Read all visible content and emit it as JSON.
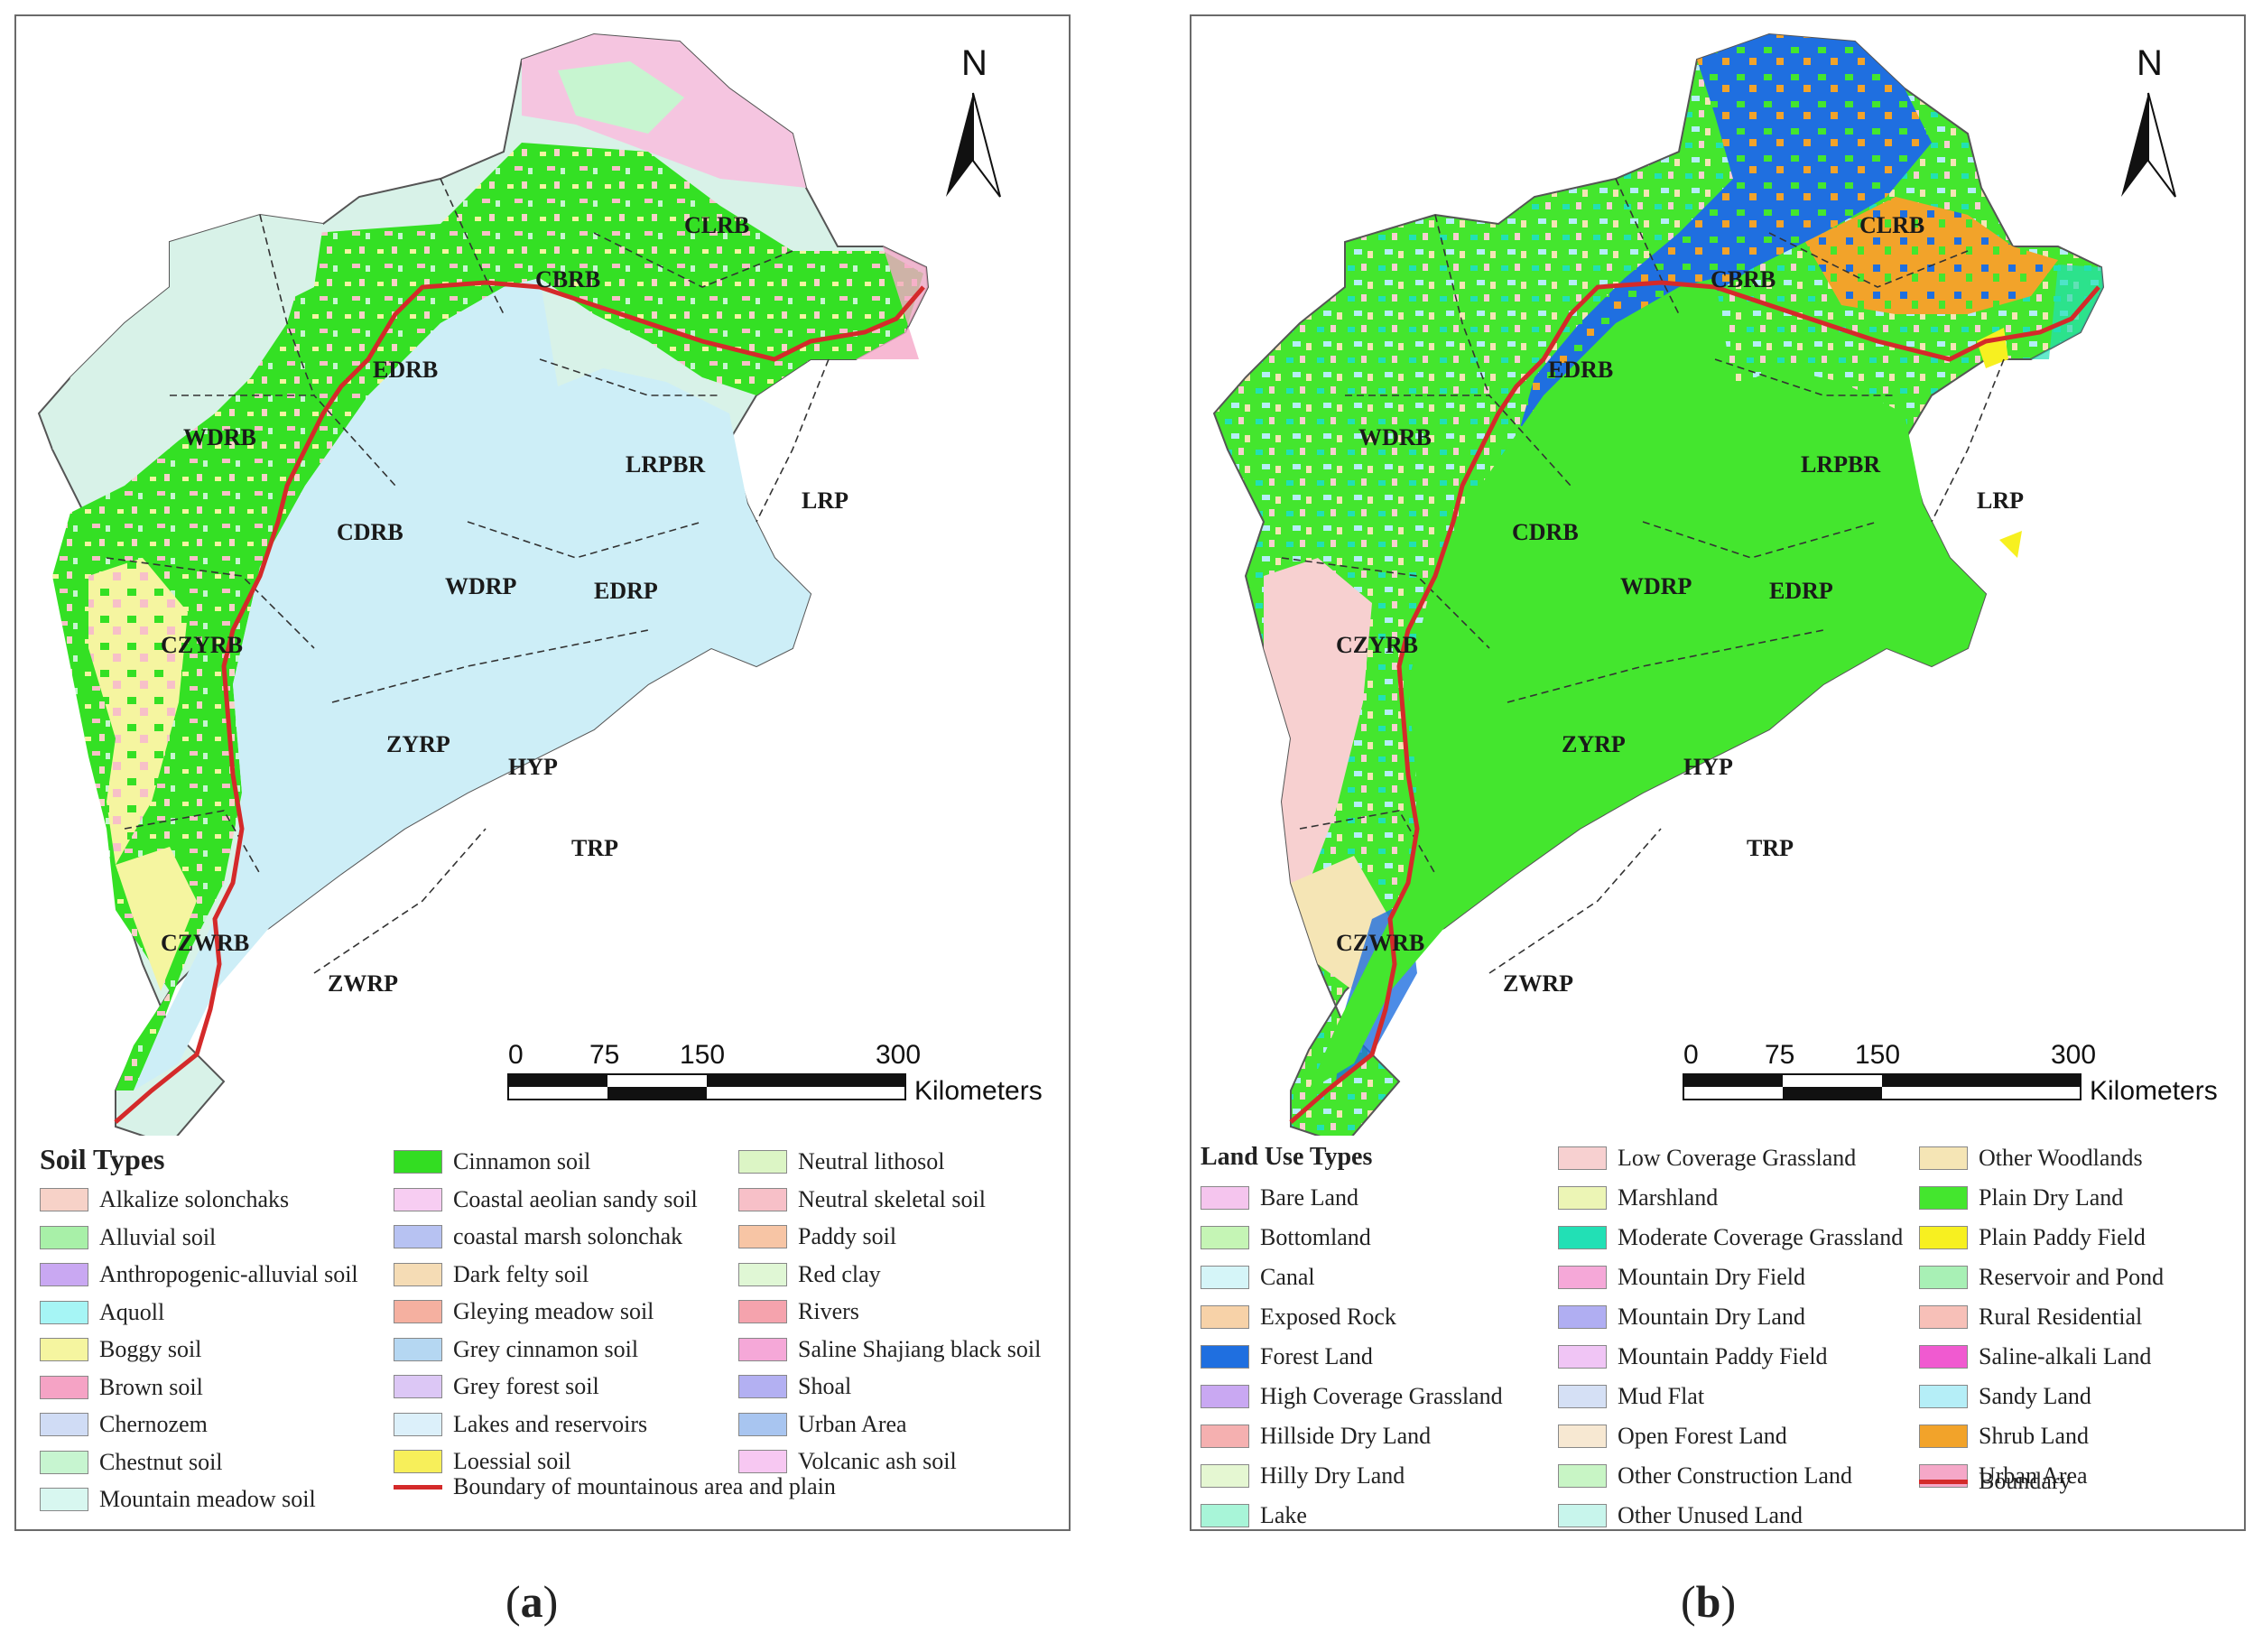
{
  "colors": {
    "boundary": "#d42a2a",
    "mountain_green": "#34e024",
    "plain_cyan": "#cdeef7",
    "plain_green": "#44e62e",
    "forest_blue": "#1f6fe0",
    "shrub_orange": "#f2a32a"
  },
  "panel_a": {
    "caption_letter": "a",
    "north": "N",
    "scale": {
      "ticks": [
        "0",
        "75",
        "150",
        "300"
      ],
      "unit": "Kilometers"
    },
    "regions": [
      "CLRB",
      "CBRB",
      "EDRB",
      "WDRB",
      "LRPBR",
      "LRP",
      "CDRB",
      "WDRP",
      "EDRP",
      "CZYRB",
      "ZYRP",
      "HYP",
      "TRP",
      "CZWRB",
      "ZWRP"
    ],
    "legend_title": "Soil Types",
    "legend_columns": [
      [
        {
          "label": "Alkalize solonchaks",
          "color": "#f7d2c8"
        },
        {
          "label": "Alluvial soil",
          "color": "#a8f0a8"
        },
        {
          "label": "Anthropogenic-alluvial soil",
          "color": "#c9a8f2"
        },
        {
          "label": "Aquoll",
          "color": "#a6f5f5"
        },
        {
          "label": "Boggy soil",
          "color": "#f5f5a0"
        },
        {
          "label": "Brown soil",
          "color": "#f5a3c5"
        },
        {
          "label": "Chernozem",
          "color": "#d0dcf5"
        },
        {
          "label": "Chestnut soil",
          "color": "#c7f5d0"
        },
        {
          "label": "Mountain meadow soil",
          "color": "#d8f7f0"
        }
      ],
      [
        {
          "label": "Cinnamon soil",
          "color": "#33dd22"
        },
        {
          "label": "Coastal aeolian sandy soil",
          "color": "#f7cdf2"
        },
        {
          "label": "coastal marsh solonchak",
          "color": "#b7c2f2"
        },
        {
          "label": "Dark felty soil",
          "color": "#f5dcb5"
        },
        {
          "label": "Gleying meadow soil",
          "color": "#f5b0a0"
        },
        {
          "label": "Grey cinnamon soil",
          "color": "#b5d7f2"
        },
        {
          "label": "Grey forest soil",
          "color": "#dcc7f5"
        },
        {
          "label": "Lakes and reservoirs",
          "color": "#dcf0fa"
        },
        {
          "label": "Loessial soil",
          "color": "#f7ef5a"
        }
      ],
      [
        {
          "label": "Neutral lithosol",
          "color": "#dcf5c5"
        },
        {
          "label": "Neutral skeletal soil",
          "color": "#f7c0c8"
        },
        {
          "label": "Paddy soil",
          "color": "#f7c5a5"
        },
        {
          "label": "Red clay",
          "color": "#e0f7d5"
        },
        {
          "label": "Rivers",
          "color": "#f5a3ad"
        },
        {
          "label": "Saline Shajiang black soil",
          "color": "#f5a8d8"
        },
        {
          "label": "Shoal",
          "color": "#b3b0f2"
        },
        {
          "label": "Urban Area",
          "color": "#a8c5f0"
        },
        {
          "label": "Volcanic ash soil",
          "color": "#f7c8f2"
        }
      ]
    ],
    "boundary_label": "Boundary of mountainous area and plain"
  },
  "panel_b": {
    "caption_letter": "b",
    "north": "N",
    "scale": {
      "ticks": [
        "0",
        "75",
        "150",
        "300"
      ],
      "unit": "Kilometers"
    },
    "regions": [
      "CLRB",
      "CBRB",
      "EDRB",
      "WDRB",
      "LRPBR",
      "LRP",
      "CDRB",
      "WDRP",
      "EDRP",
      "CZYRB",
      "ZYRP",
      "HYP",
      "TRP",
      "CZWRB",
      "ZWRP"
    ],
    "legend_title": "Land Use Types",
    "legend_columns": [
      [
        {
          "label": "Bare Land",
          "color": "#f5c5ee"
        },
        {
          "label": "Bottomland",
          "color": "#c5f5b5"
        },
        {
          "label": "Canal",
          "color": "#d5f5f8"
        },
        {
          "label": "Exposed Rock",
          "color": "#f7d2a8"
        },
        {
          "label": "Forest Land",
          "color": "#1f6fe0"
        },
        {
          "label": "High Coverage Grassland",
          "color": "#c9a8f2"
        },
        {
          "label": "Hillside Dry Land",
          "color": "#f5b0b0"
        },
        {
          "label": "Hilly Dry Land",
          "color": "#e5f7d2"
        },
        {
          "label": "Lake",
          "color": "#a8f5d8"
        }
      ],
      [
        {
          "label": "Low Coverage Grassland",
          "color": "#f7d0d0"
        },
        {
          "label": "Marshland",
          "color": "#ecf5b5"
        },
        {
          "label": "Moderate Coverage Grassland",
          "color": "#22e0b5"
        },
        {
          "label": "Mountain Dry Field",
          "color": "#f5a8d8"
        },
        {
          "label": "Mountain Dry Land",
          "color": "#b0aef2"
        },
        {
          "label": "Mountain Paddy Field",
          "color": "#f0c5f5"
        },
        {
          "label": "Mud Flat",
          "color": "#d5e0f5"
        },
        {
          "label": "Open Forest Land",
          "color": "#f7e8d2"
        },
        {
          "label": "Other Construction Land",
          "color": "#c8f5c5"
        },
        {
          "label": "Other Unused Land",
          "color": "#c8f5ec"
        }
      ],
      [
        {
          "label": "Other Woodlands",
          "color": "#f5e5b5"
        },
        {
          "label": "Plain Dry Land",
          "color": "#44e62e"
        },
        {
          "label": "Plain Paddy Field",
          "color": "#f7f020"
        },
        {
          "label": "Reservoir and Pond",
          "color": "#a8f0b5"
        },
        {
          "label": "Rural Residential",
          "color": "#f7c0b8"
        },
        {
          "label": "Saline-alkali Land",
          "color": "#f05ad0"
        },
        {
          "label": "Sandy Land",
          "color": "#b5eef7"
        },
        {
          "label": "Shrub Land",
          "color": "#f2a32a"
        },
        {
          "label": "Urban Area",
          "color": "#f5a8c8"
        }
      ]
    ],
    "boundary_label": "Boundary"
  }
}
